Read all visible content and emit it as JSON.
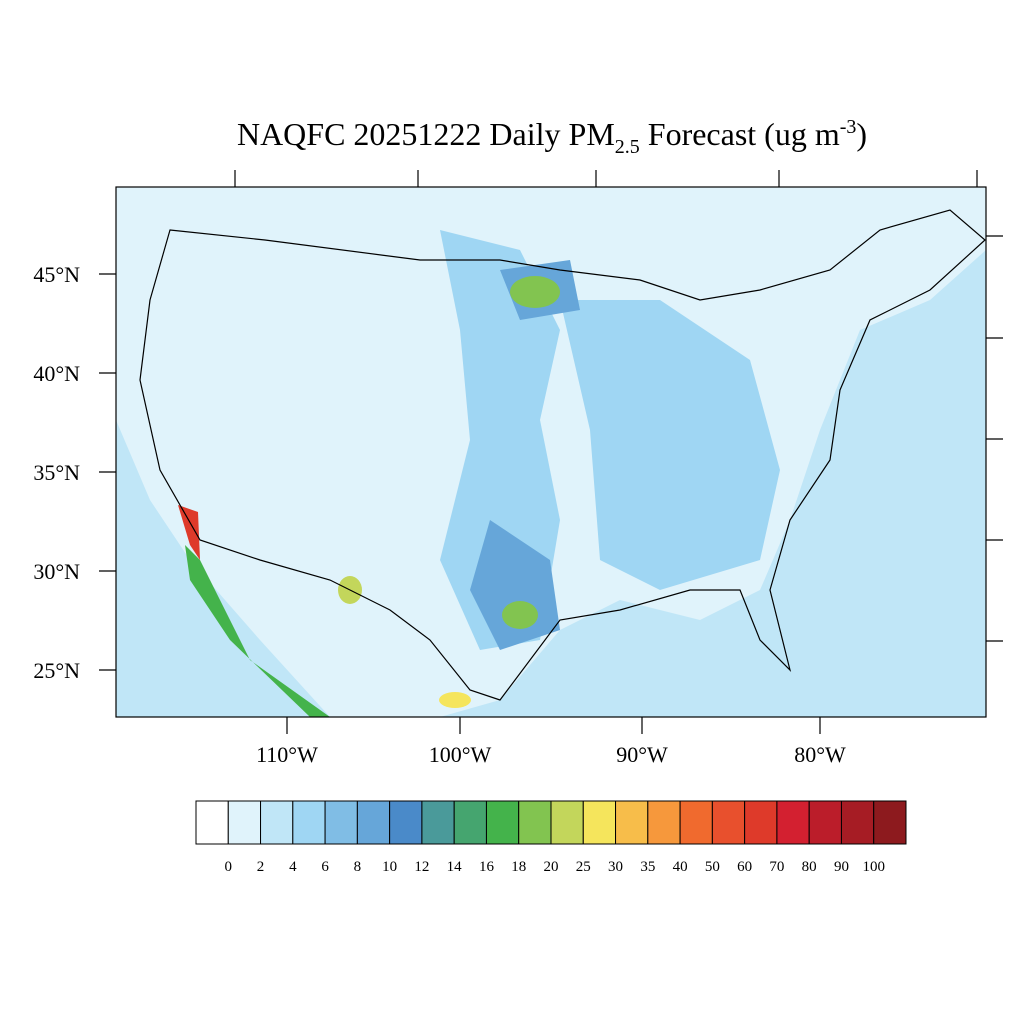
{
  "map": {
    "title_parts": [
      "NAQFC 20251222 Daily PM",
      "2.5",
      " Forecast (ug m",
      "-3",
      ")"
    ],
    "lat_labels": [
      "45°N",
      "40°N",
      "35°N",
      "30°N",
      "25°N"
    ],
    "lon_labels": [
      "110°W",
      "100°W",
      "90°W",
      "80°W"
    ],
    "colorbar": {
      "labels": [
        "0",
        "2",
        "4",
        "6",
        "8",
        "10",
        "12",
        "14",
        "16",
        "18",
        "20",
        "25",
        "30",
        "35",
        "40",
        "50",
        "60",
        "70",
        "80",
        "90",
        "100"
      ],
      "colors": [
        "#ffffff",
        "#e0f3fb",
        "#c0e6f7",
        "#9fd6f3",
        "#80bde5",
        "#66a6d9",
        "#4a8ac9",
        "#4a9a9a",
        "#45a56f",
        "#44b34b",
        "#82c450",
        "#c3d65b",
        "#f5e55c",
        "#f7bd4a",
        "#f6983c",
        "#f06a2e",
        "#e8502d",
        "#de3a2a",
        "#d32030",
        "#bb1d2a",
        "#a61c24",
        "#8d1a1e"
      ]
    }
  }
}
